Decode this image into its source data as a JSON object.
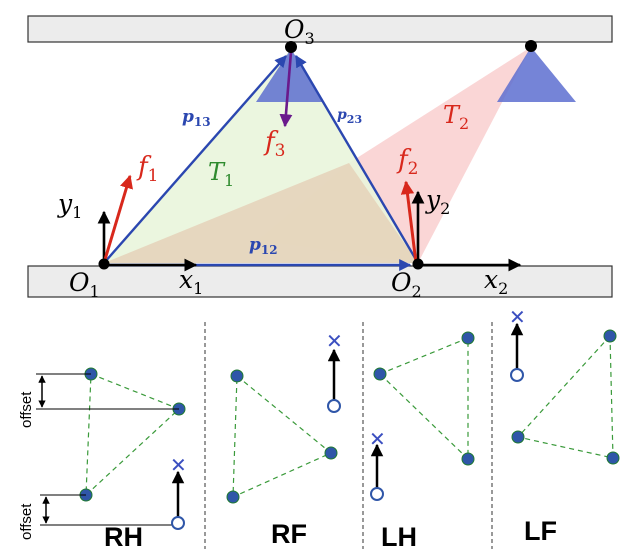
{
  "labels": {
    "O3": {
      "main": "O",
      "sub": "3"
    },
    "O1": {
      "main": "O",
      "sub": "1"
    },
    "O2": {
      "main": "O",
      "sub": "2"
    },
    "x1": {
      "main": "x",
      "sub": "1"
    },
    "x2": {
      "main": "x",
      "sub": "2"
    },
    "y1": {
      "main": "y",
      "sub": "1"
    },
    "y2": {
      "main": "y",
      "sub": "2"
    },
    "f1": {
      "main": "f",
      "sub": "1"
    },
    "f2": {
      "main": "f",
      "sub": "2"
    },
    "f3": {
      "main": "f",
      "sub": "3"
    },
    "T1": {
      "main": "T",
      "sub": "1"
    },
    "T2": {
      "main": "T",
      "sub": "2"
    },
    "p13": {
      "main": "p",
      "sub": "13"
    },
    "p23": {
      "main": "p",
      "sub": "23"
    },
    "p12": {
      "main": "p",
      "sub": "12"
    }
  },
  "offset_label": "offset",
  "panels": {
    "rh": "RH",
    "rf": "RF",
    "lh": "LH",
    "lf": "LF"
  },
  "colors": {
    "vector_blue": "#2b47b0",
    "force_red": "#d8281c",
    "force_purple": "#6a1a8c",
    "T1_green": "#2e8b2e",
    "T2_red": "#d8281c",
    "foot_blue": "#2f56a8",
    "dash_green": "#3a9a3a",
    "cross_blue": "#3b4fc0"
  }
}
